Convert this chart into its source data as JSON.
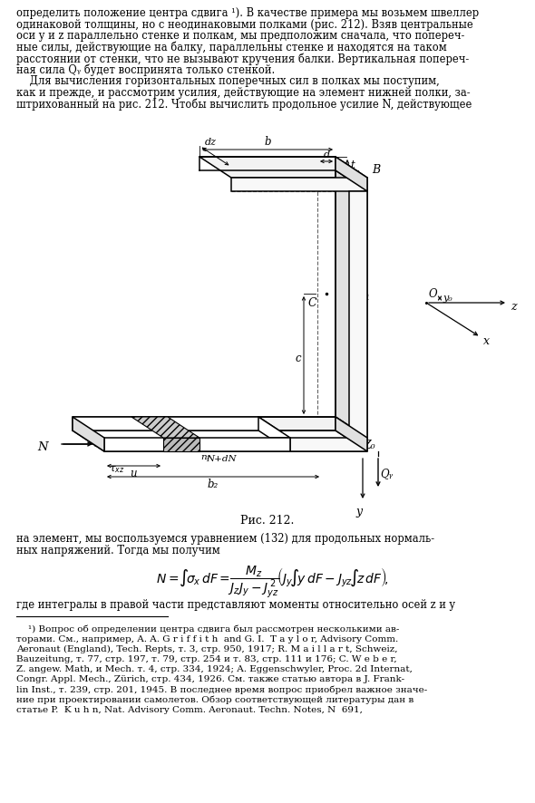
{
  "bg_color": "#ffffff",
  "text_color": "#000000",
  "lines_top": [
    "определить положение центра сдвига ¹). В качестве примера мы возьмем швеллер",
    "одинаковой толщины, но с неодинаковыми полками (рис. 212). Взяв центральные",
    "оси у и z параллельно стенке и полкам, мы предположим сначала, что попереч-",
    "ные силы, действующие на балку, параллельны стенке и находятся на таком",
    "расстоянии от стенки, что не вызывают кручения балки. Вертикальная попереч-",
    "ная сила Qᵧ будет воспринята только стенкой.",
    "    Для вычисления горизонтальных поперечных сил в полках мы поступим,",
    "как и прежде, и рассмотрим усилия, действующие на элемент нижней полки, за-",
    "штрихованный на рис. 212. Чтобы вычислить продольное усилие N, действующее"
  ],
  "lines_bottom": [
    "на элемент, мы воспользуемся уравнением (132) для продольных нормаль-",
    "ных напряжений. Тогда мы получим"
  ],
  "line_after_formula": "где интегралы в правой части представляют моменты относительно осей z и y",
  "footnote_lines": [
    "    ¹) Вопрос об определении центра сдвига был рассмотрен несколькими ав-",
    "торами. См., например, A. A. G r i f f i t h  and G. I.  T a y l o r, Advisory Comm.",
    "Aeronaut (England), Tech. Repts, т. 3, стр. 950, 1917; R. M a i l l a r t, Schweiz,",
    "Bauzeitung, т. 77, стр. 197, т. 79, стр. 254 и т. 83, стр. 111 и 176; C. W e b e r,",
    "Z. angew. Math, и Mech. т. 4, стр. 334, 1924; A. Eggenschwyler, Proc. 2d Internat,",
    "Congr. Appl. Mech., Zürich, стр. 434, 1926. См. также статью автора в J. Frank-",
    "lin Inst., т. 239, стр. 201, 1945. В последнее время вопрос приобрел важное значе-",
    "ние при проектировании самолетов. Обзор соответствующей литературы дан в",
    "статье P.  K u h n, Nat. Advisory Comm. Aeronaut. Techn. Notes, N  691,"
  ]
}
